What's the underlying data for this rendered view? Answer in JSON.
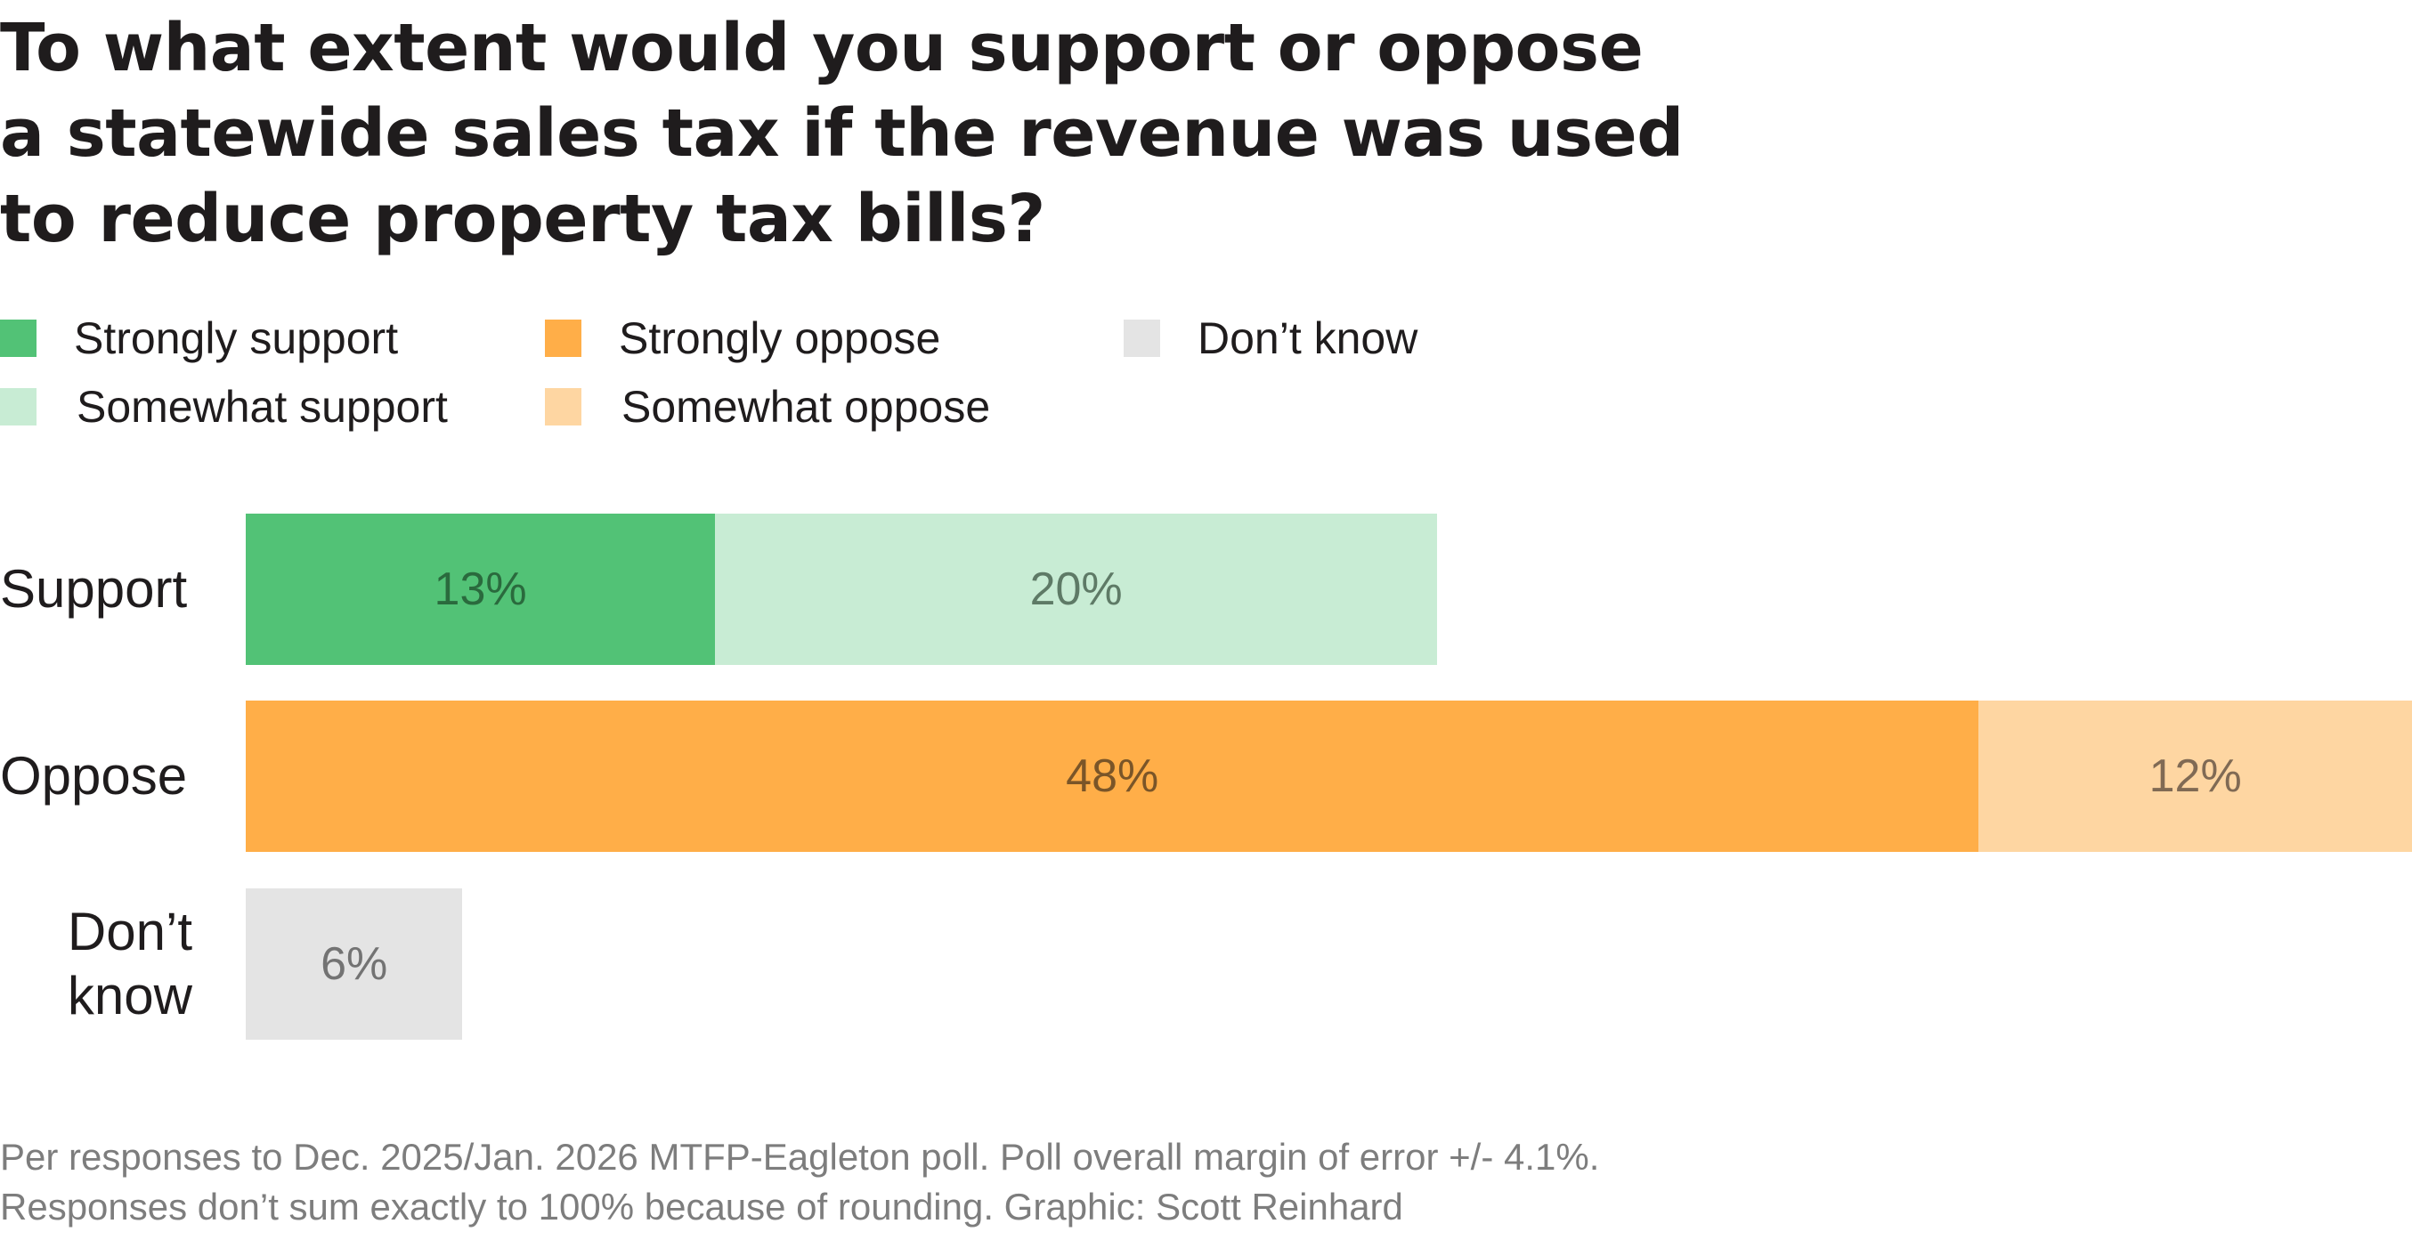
{
  "title": "To what extent would you support or oppose a statewide sales tax if the revenue was used to reduce property tax bills?",
  "title_lines": [
    "To what extent would you support or oppose",
    "a statewide sales tax if the revenue was used",
    "to reduce property tax bills?"
  ],
  "legend": [
    {
      "label": "Strongly support",
      "color": "#52c276"
    },
    {
      "label": "Somewhat support",
      "color": "#c8ecd4"
    },
    {
      "label": "Strongly oppose",
      "color": "#ffae48"
    },
    {
      "label": "Somewhat oppose",
      "color": "#fed6a2"
    },
    {
      "label": "Don’t know",
      "color": "#e4e4e4"
    }
  ],
  "chart_data": {
    "type": "bar",
    "orientation": "horizontal",
    "stacked": true,
    "title": "To what extent would you support or oppose a statewide sales tax if the revenue was used to reduce property tax bills?",
    "categories": [
      "Support",
      "Oppose",
      "Don’t know"
    ],
    "category_label_lines": [
      [
        "Support"
      ],
      [
        "Oppose"
      ],
      [
        "Don’t",
        "know"
      ]
    ],
    "units": "%",
    "xlim": [
      0,
      60
    ],
    "grid": false,
    "legend_position": "top-left",
    "rows": [
      {
        "category": "Support",
        "segments": [
          {
            "series": "Strongly support",
            "value": 13,
            "label": "13%",
            "color": "#52c276",
            "text_color": "#2a6a3d"
          },
          {
            "series": "Somewhat support",
            "value": 20,
            "label": "20%",
            "color": "#c8ecd4",
            "text_color": "#5e7a66"
          }
        ]
      },
      {
        "category": "Oppose",
        "segments": [
          {
            "series": "Strongly oppose",
            "value": 48,
            "label": "48%",
            "color": "#ffae48",
            "text_color": "#7a5528"
          },
          {
            "series": "Somewhat oppose",
            "value": 12,
            "label": "12%",
            "color": "#fed6a2",
            "text_color": "#806a54"
          }
        ]
      },
      {
        "category": "Don’t know",
        "segments": [
          {
            "series": "Don’t know",
            "value": 6,
            "label": "6%",
            "color": "#e4e4e4",
            "text_color": "#737373"
          }
        ]
      }
    ]
  },
  "footnote": {
    "line1": "Per responses to Dec. 2025/Jan. 2026 MTFP-Eagleton poll. Poll overall margin of error +/- 4.1%.",
    "line2": "Responses don’t sum exactly to 100% because of rounding. Graphic: Scott Reinhard"
  }
}
